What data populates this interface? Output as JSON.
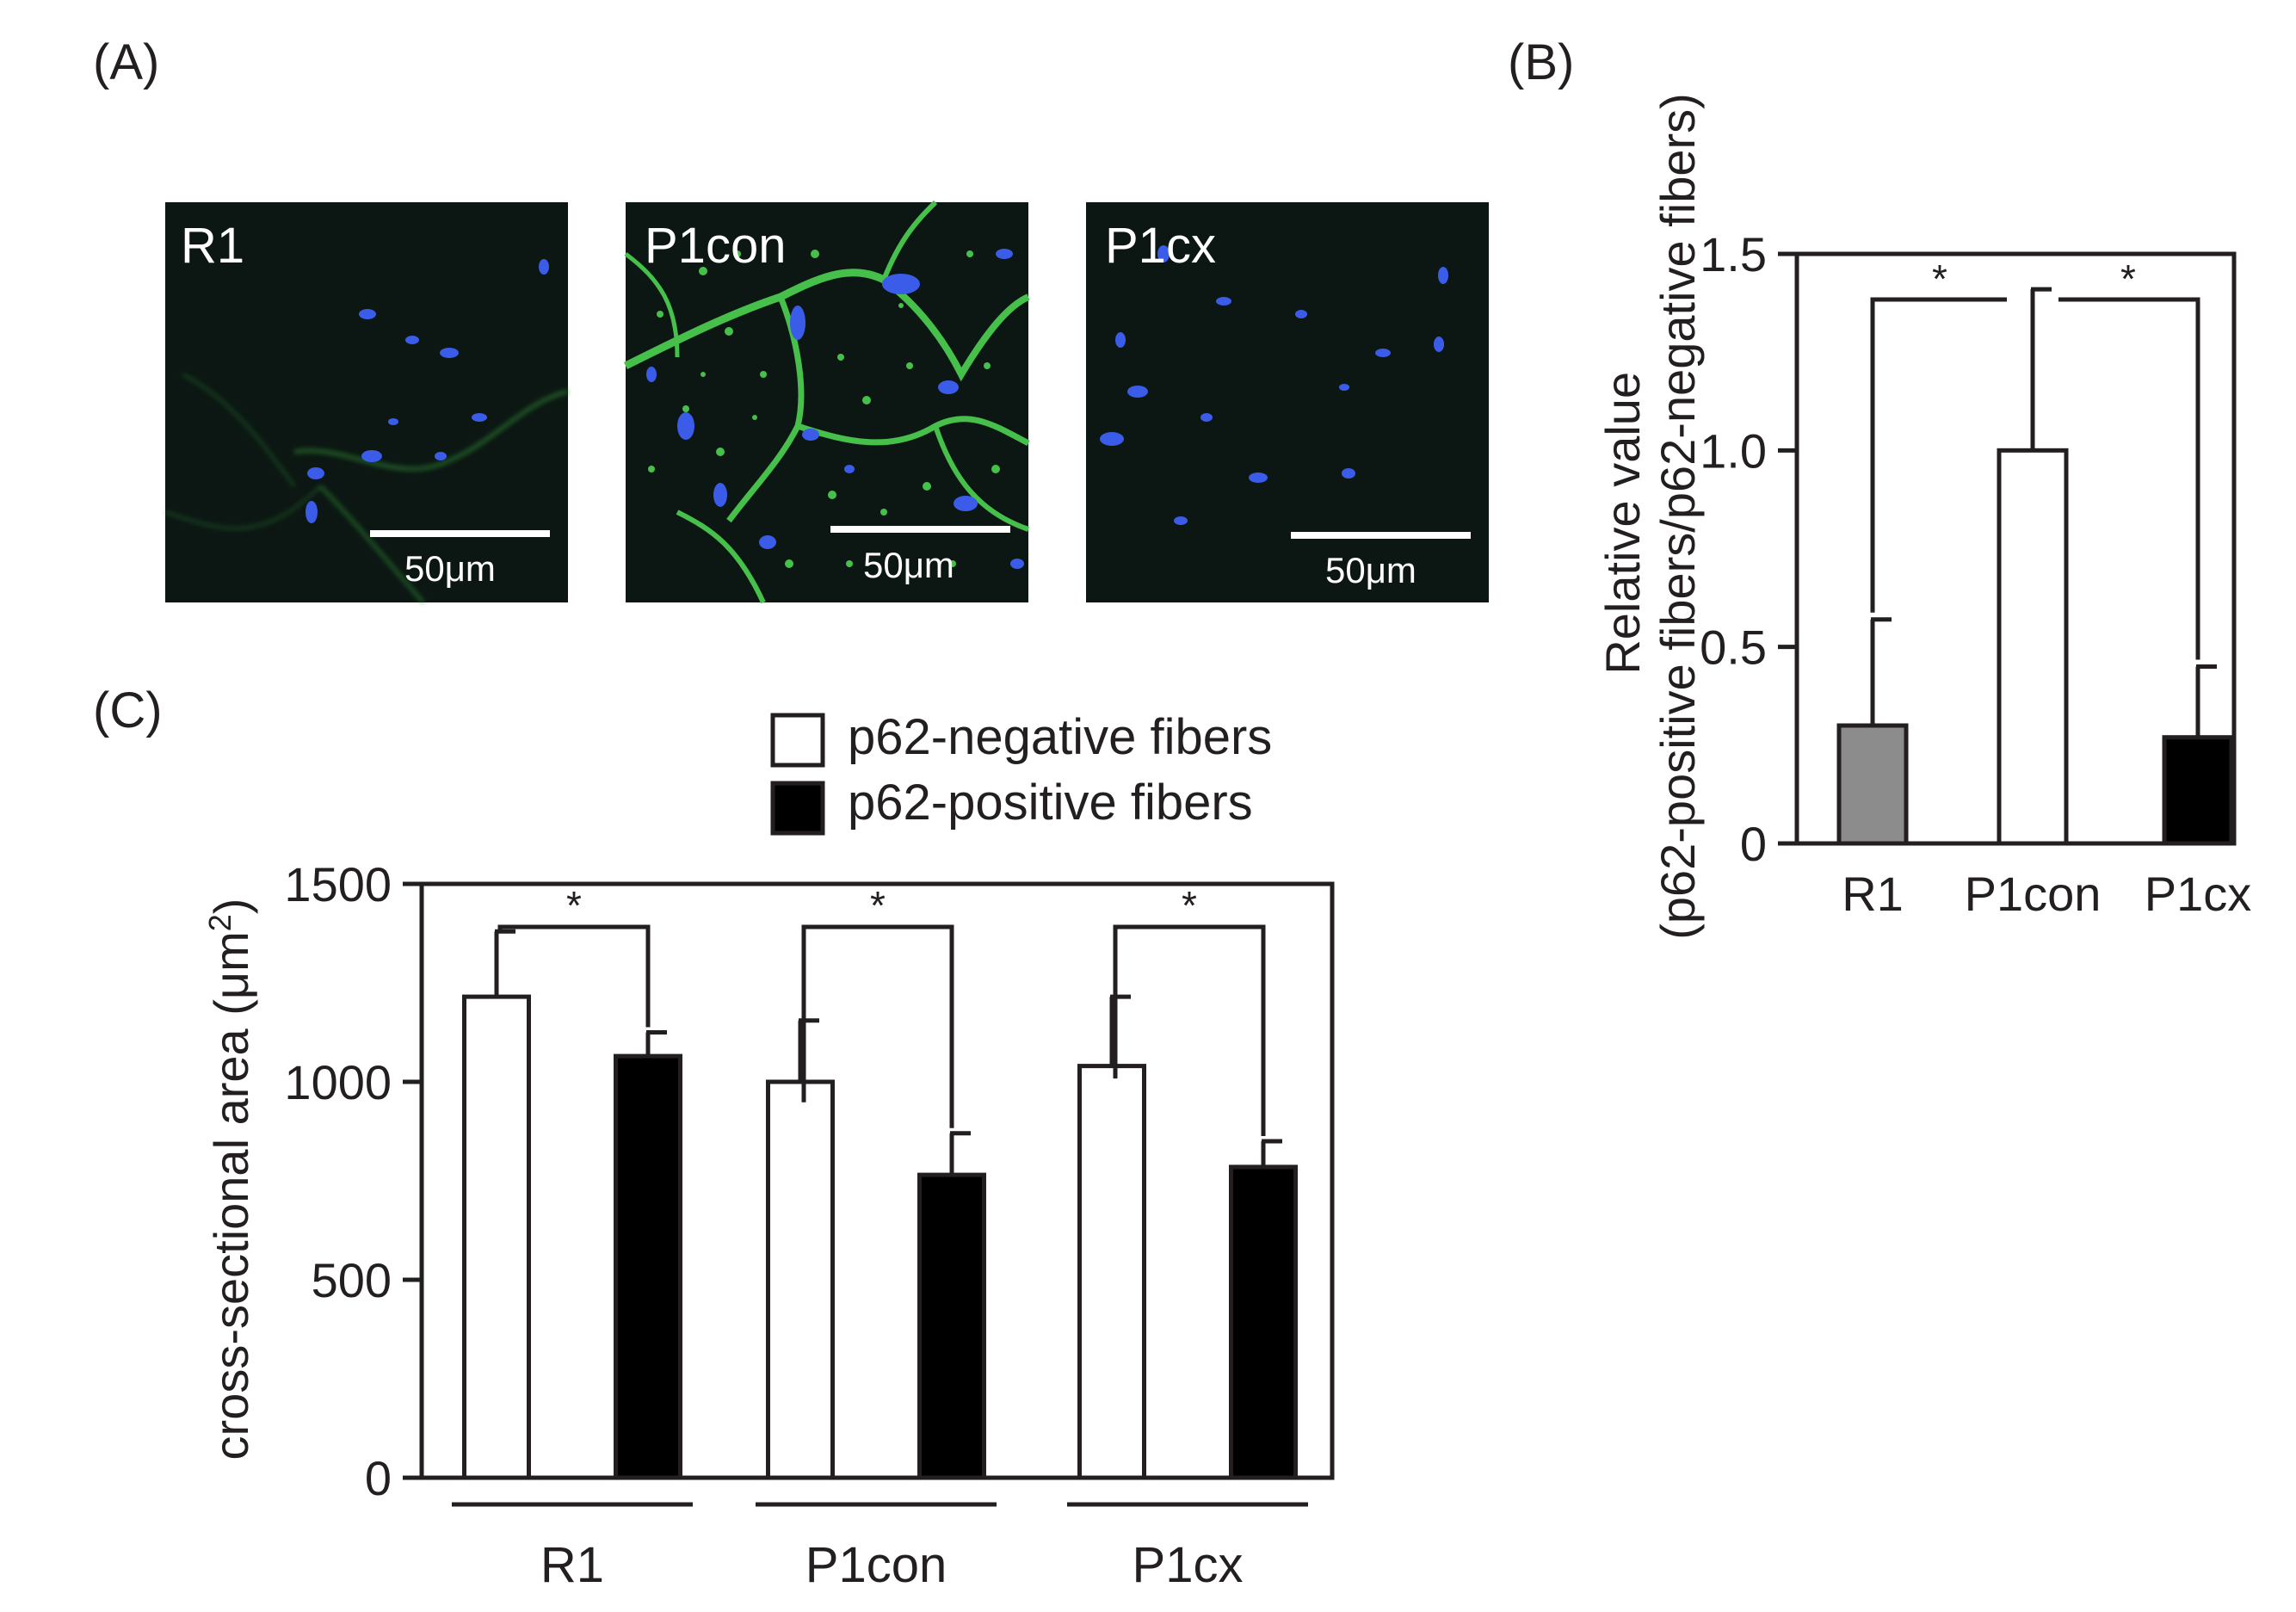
{
  "panels": {
    "a": {
      "letter": "(A)",
      "micrographs": [
        {
          "label": "R1",
          "scale": "50μm",
          "green_level": "low"
        },
        {
          "label": "P1con",
          "scale": "50μm",
          "green_level": "high"
        },
        {
          "label": "P1cx",
          "scale": "50μm",
          "green_level": "none"
        }
      ],
      "colors": {
        "background": "#0c1713",
        "nuclei": "#3a5ce8",
        "p62": "#46c04a",
        "scale_bar": "#ffffff"
      }
    },
    "b": {
      "letter": "(B)"
    },
    "c": {
      "letter": "(C)"
    }
  },
  "chart_data": [
    {
      "type": "bar",
      "panel": "(B)",
      "categories": [
        "R1",
        "P1con",
        "P1cx"
      ],
      "values": [
        0.3,
        1.0,
        0.27
      ],
      "errors": [
        0.27,
        0.41,
        0.18
      ],
      "colors": [
        "#8c8c8c",
        "#ffffff",
        "#000000"
      ],
      "ylabel": "Relative value\n(p62-positive fibers/p62-negative fibers)",
      "ylim": [
        0,
        1.5
      ],
      "yticks": [
        "0",
        "0.5",
        "1.0",
        "1.5"
      ],
      "grid": false,
      "significance": [
        {
          "from": "R1",
          "to": "P1con",
          "label": "*"
        },
        {
          "from": "P1con",
          "to": "P1cx",
          "label": "*"
        }
      ]
    },
    {
      "type": "bar",
      "panel": "(C)",
      "categories": [
        "R1",
        "P1con",
        "P1cx"
      ],
      "series": [
        {
          "name": "p62-negative fibers",
          "color": "#ffffff",
          "values": [
            1215,
            1000,
            1040
          ],
          "errors": [
            165,
            155,
            175
          ]
        },
        {
          "name": "p62-positive fibers",
          "color": "#000000",
          "values": [
            1065,
            765,
            785
          ],
          "errors": [
            60,
            105,
            65
          ]
        }
      ],
      "ylabel": "cross-sectional area (μm",
      "ylabel_sup": "2",
      "ylabel_close": ")",
      "ylim": [
        0,
        1500
      ],
      "yticks": [
        "0",
        "500",
        "1000",
        "1500"
      ],
      "grid": false,
      "legend": "top",
      "significance": [
        {
          "group": "R1",
          "label": "*"
        },
        {
          "group": "P1con",
          "label": "*"
        },
        {
          "group": "P1cx",
          "label": "*"
        }
      ]
    }
  ]
}
